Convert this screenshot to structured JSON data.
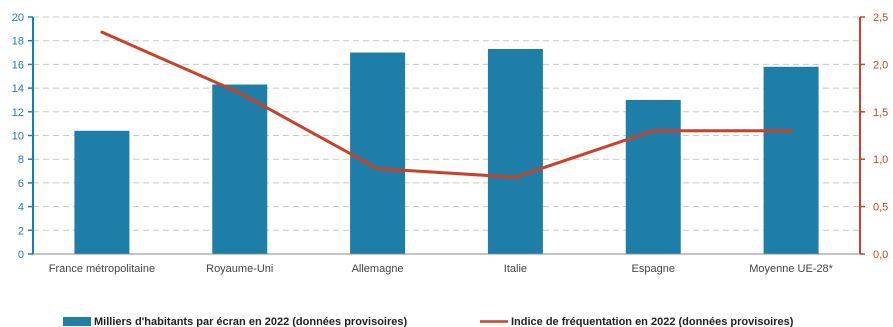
{
  "chart_data": {
    "type": "bar+line",
    "categories": [
      "France métropolitaine",
      "Royaume-Uni",
      "Allemagne",
      "Italie",
      "Espagne",
      "Moyenne UE-28*"
    ],
    "series": [
      {
        "name": "Milliers d'habitants par écran en 2022 (données provisoires)",
        "type": "bar",
        "axis": "left",
        "color": "#1f7ea8",
        "values": [
          10.4,
          14.3,
          17.0,
          17.3,
          13.0,
          15.8
        ]
      },
      {
        "name": "Indice de fréquentation en 2022 (données provisoires)",
        "type": "line",
        "axis": "right",
        "color": "#c8412b",
        "values": [
          2.34,
          1.7,
          0.9,
          0.81,
          1.3,
          1.3
        ]
      }
    ],
    "left_axis": {
      "min": 0,
      "max": 20,
      "step": 2,
      "ticks": [
        "0",
        "2",
        "4",
        "6",
        "8",
        "10",
        "12",
        "14",
        "16",
        "18",
        "20"
      ],
      "color": "#1f7ea8"
    },
    "right_axis": {
      "min": 0,
      "max": 2.5,
      "step": 0.5,
      "ticks": [
        "0,0",
        "0,5",
        "1,0",
        "1,5",
        "2,0",
        "2,5"
      ],
      "color": "#c8412b"
    },
    "grid": true,
    "legend_position": "bottom"
  }
}
